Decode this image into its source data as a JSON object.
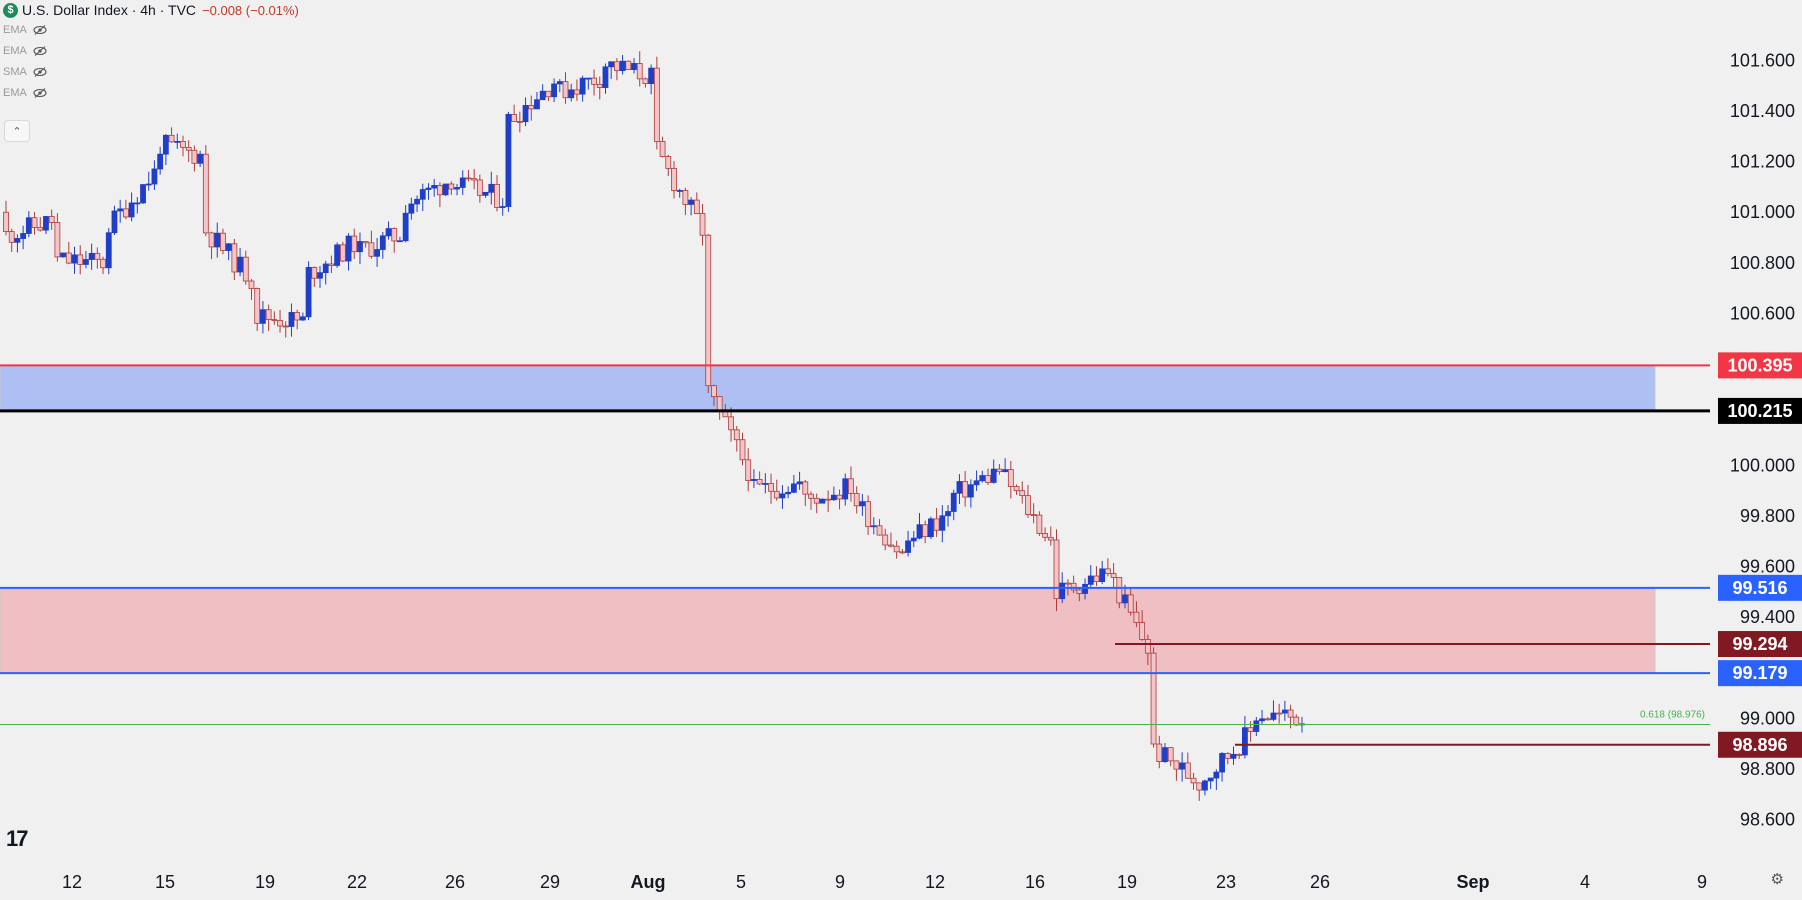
{
  "header": {
    "logo_letter": "$",
    "title": "U.S. Dollar Index · 4h · TVC",
    "change": "−0.008 (−0.01%)"
  },
  "indicators": [
    "EMA",
    "EMA",
    "SMA",
    "EMA"
  ],
  "icons": {
    "indicator_visibility": "eye-off-icon",
    "collapse": "chevron-up-icon",
    "settings": "gear-icon",
    "brand": "tradingview-logo"
  },
  "collapse_glyph": "⌃",
  "tv_logo_text": "17",
  "settings_glyph": "⚙",
  "colors": {
    "background": "#f0f0f0",
    "up_candle": "#1f3fc9",
    "down_candle": "#f2c6c8",
    "down_candle_border": "#b03a3a",
    "resistance_zone": "#aebff3",
    "support_zone": "#f0bfc3",
    "fib_line": "#4caf50"
  },
  "chart_data": {
    "type": "candlestick",
    "title": "U.S. Dollar Index · 4h · TVC",
    "timeframe": "4h",
    "ylim": [
      98.5,
      101.72
    ],
    "yticks": [
      "101.600",
      "101.400",
      "101.200",
      "101.000",
      "100.800",
      "100.600",
      "100.000",
      "99.800",
      "99.600",
      "99.400",
      "99.000",
      "98.800",
      "98.600"
    ],
    "xticks": [
      "12",
      "15",
      "19",
      "22",
      "26",
      "29",
      "Aug",
      "5",
      "9",
      "12",
      "16",
      "19",
      "23",
      "26",
      "Sep",
      "4",
      "9"
    ],
    "xtick_positions": [
      0.0,
      1.0,
      2.0,
      3.0,
      4.0,
      5.0,
      6.0,
      7.0,
      8.0,
      9.0,
      10.0,
      11.0,
      12.0,
      13.0,
      14.0,
      15.0,
      16.0
    ],
    "key_levels": [
      {
        "value": 100.395,
        "label": "100.395",
        "color": "#f23645"
      },
      {
        "value": 100.215,
        "label": "100.215",
        "color": "#000000"
      },
      {
        "value": 99.516,
        "label": "99.516",
        "color": "#2962ff"
      },
      {
        "value": 99.294,
        "label": "99.294",
        "color": "#801922"
      },
      {
        "value": 99.179,
        "label": "99.179",
        "color": "#2962ff"
      },
      {
        "value": 98.896,
        "label": "98.896",
        "color": "#801922"
      }
    ],
    "zones": [
      {
        "from": 100.215,
        "to": 100.395,
        "color": "#aebff3"
      },
      {
        "from": 99.179,
        "to": 99.516,
        "color": "#f0bfc3"
      }
    ],
    "fib_line": {
      "value": 98.976,
      "label": "0.618 (98.976)"
    },
    "ohlc_waypoints": [
      [
        101.0,
        100.85
      ],
      [
        101.05,
        100.65
      ],
      [
        100.9,
        100.95
      ],
      [
        101.3,
        101.25
      ],
      [
        101.2,
        100.75
      ],
      [
        100.7,
        100.52
      ],
      [
        100.6,
        100.85
      ],
      [
        100.9,
        100.8
      ],
      [
        101.0,
        101.05
      ],
      [
        101.2,
        101.05
      ],
      [
        101.05,
        101.55
      ],
      [
        101.5,
        101.45
      ],
      [
        101.6,
        101.58
      ],
      [
        101.5,
        101.1
      ],
      [
        100.8,
        100.0
      ],
      [
        99.9,
        99.9
      ],
      [
        99.95,
        99.8
      ],
      [
        100.0,
        99.78
      ],
      [
        99.55,
        99.78
      ],
      [
        99.85,
        99.9
      ],
      [
        100.05,
        99.9
      ],
      [
        99.55,
        99.45
      ],
      [
        99.65,
        99.6
      ],
      [
        99.0,
        98.8
      ],
      [
        98.7,
        98.8
      ],
      [
        99.05,
        99.0
      ],
      [
        99.0,
        98.94
      ]
    ]
  }
}
